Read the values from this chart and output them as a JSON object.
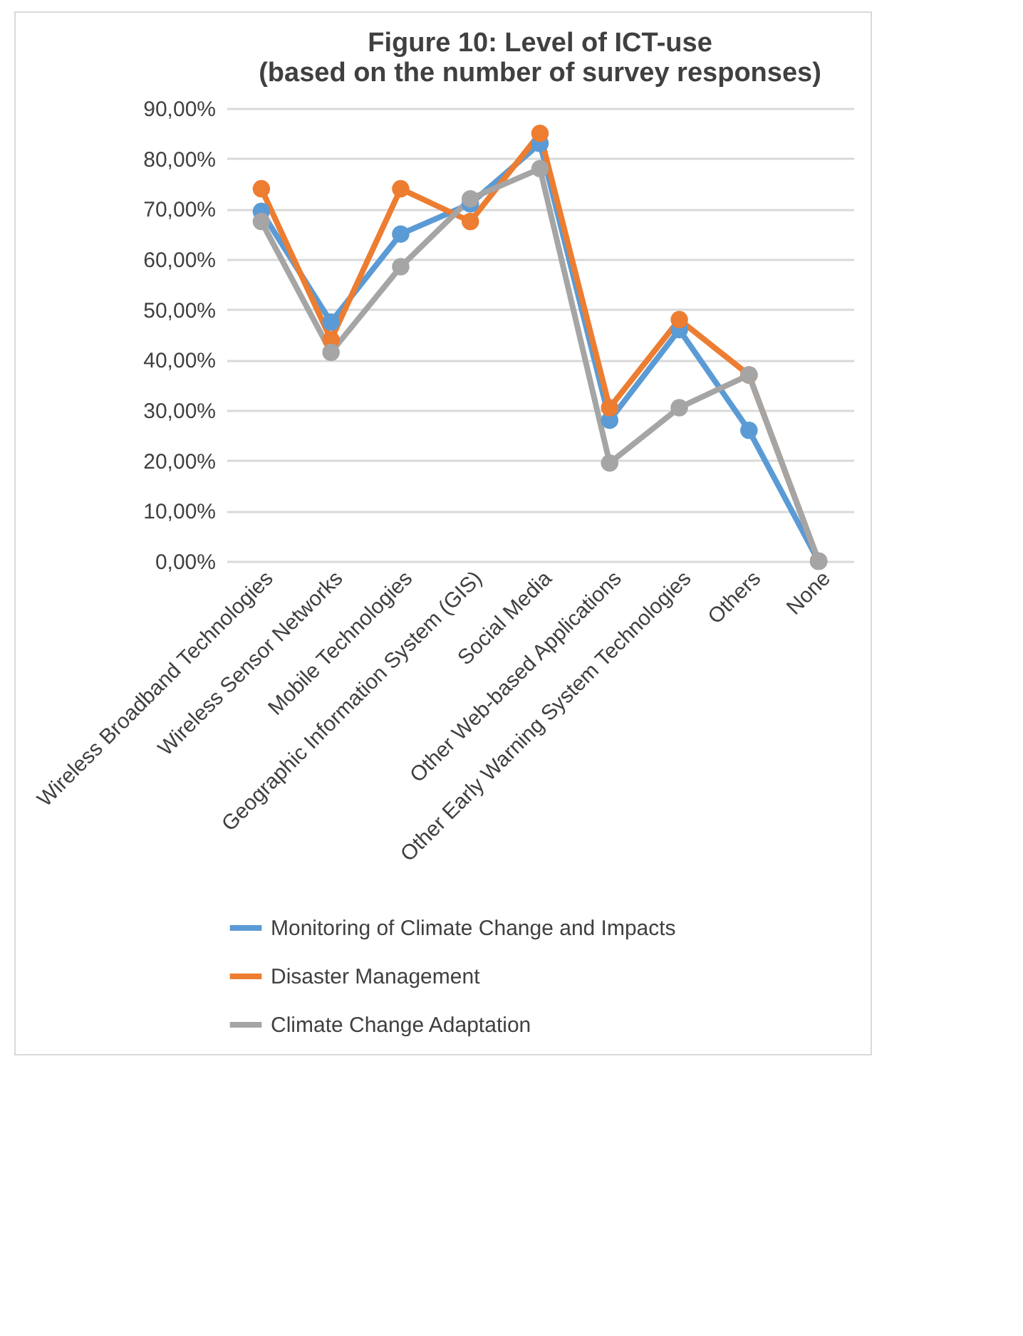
{
  "chart_data": {
    "type": "line",
    "title": [
      "Figure 10: Level of ICT-use",
      "(based on the number of survey responses)"
    ],
    "categories": [
      "Wireless Broadband Technologies",
      "Wireless Sensor Networks",
      "Mobile Technologies",
      "Geographic Information System (GIS)",
      "Social Media",
      "Other Web-based Applications",
      "Other Early Warning System Technologies",
      "Others",
      "None"
    ],
    "series": [
      {
        "name": "Monitoring of Climate Change and Impacts",
        "color": "#5b9bd5",
        "values": [
          69.5,
          47.5,
          65,
          71,
          83,
          28,
          46,
          26,
          0
        ]
      },
      {
        "name": "Disaster Management",
        "color": "#ed7d31",
        "values": [
          74,
          44,
          74,
          67.5,
          85,
          30.5,
          48,
          37,
          0
        ]
      },
      {
        "name": "Climate Change Adaptation",
        "color": "#a5a5a5",
        "values": [
          67.5,
          41.5,
          58.5,
          72,
          78,
          19.5,
          30.5,
          37,
          0
        ]
      }
    ],
    "ylim": [
      0,
      90
    ],
    "yticks": [
      {
        "value": 0,
        "label": "0,00%"
      },
      {
        "value": 10,
        "label": "10,00%"
      },
      {
        "value": 20,
        "label": "20,00%"
      },
      {
        "value": 30,
        "label": "30,00%"
      },
      {
        "value": 40,
        "label": "40,00%"
      },
      {
        "value": 50,
        "label": "50,00%"
      },
      {
        "value": 60,
        "label": "60,00%"
      },
      {
        "value": 70,
        "label": "70,00%"
      },
      {
        "value": 80,
        "label": "80,00%"
      },
      {
        "value": 90,
        "label": "90,00%"
      }
    ],
    "grid": "y",
    "legend": "bottom",
    "marker": "circle",
    "line_style": "solid"
  }
}
